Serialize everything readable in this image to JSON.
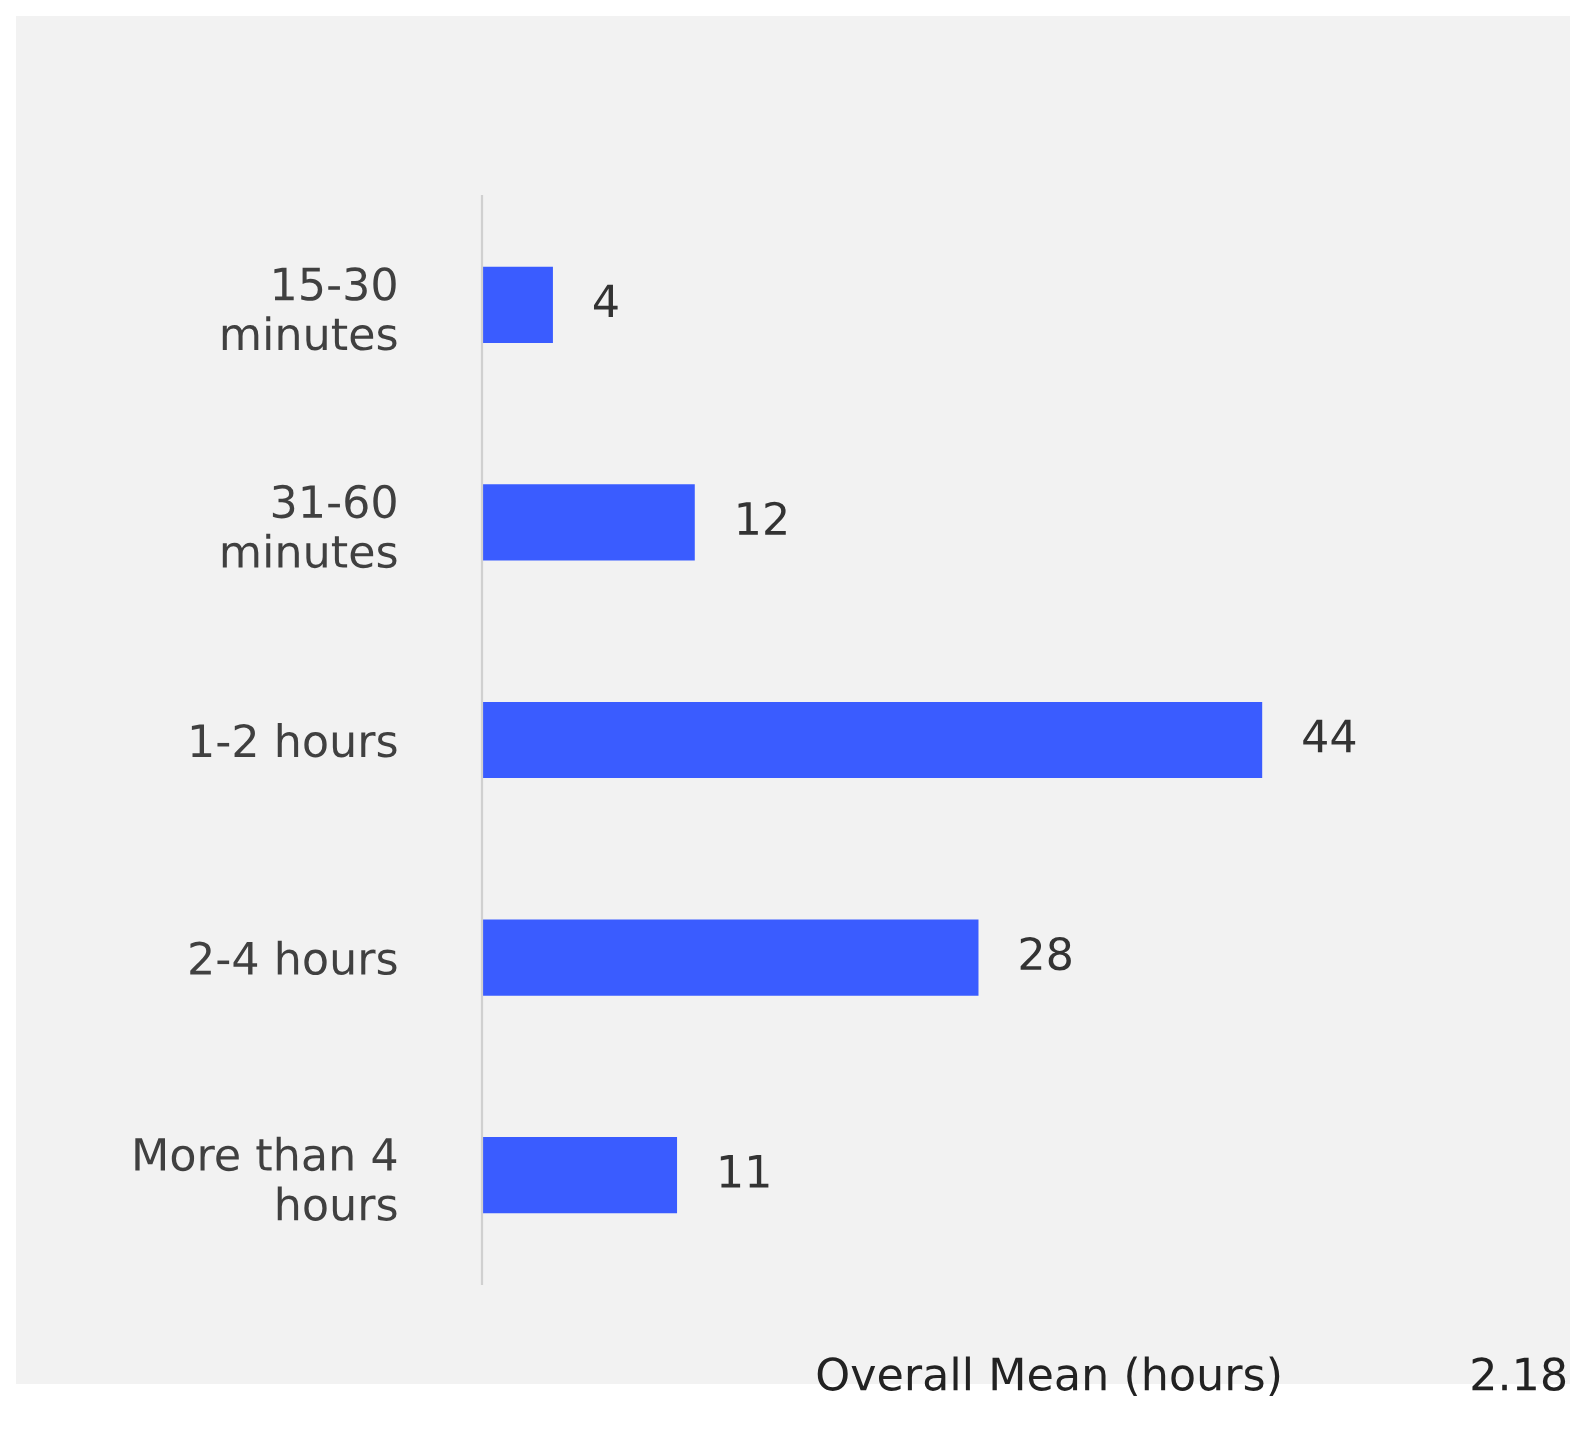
{
  "chart_data": {
    "type": "bar",
    "orientation": "horizontal",
    "categories": [
      "15-30\nminutes",
      "31-60\nminutes",
      "1-2 hours",
      "2-4 hours",
      "More than 4\nhours"
    ],
    "values": [
      4,
      12,
      44,
      28,
      11
    ],
    "color": "#3a5cff",
    "data_labels": true,
    "grid": false,
    "legend": false,
    "annotations": [
      "Overall Mean (hours)",
      "2.18"
    ]
  }
}
